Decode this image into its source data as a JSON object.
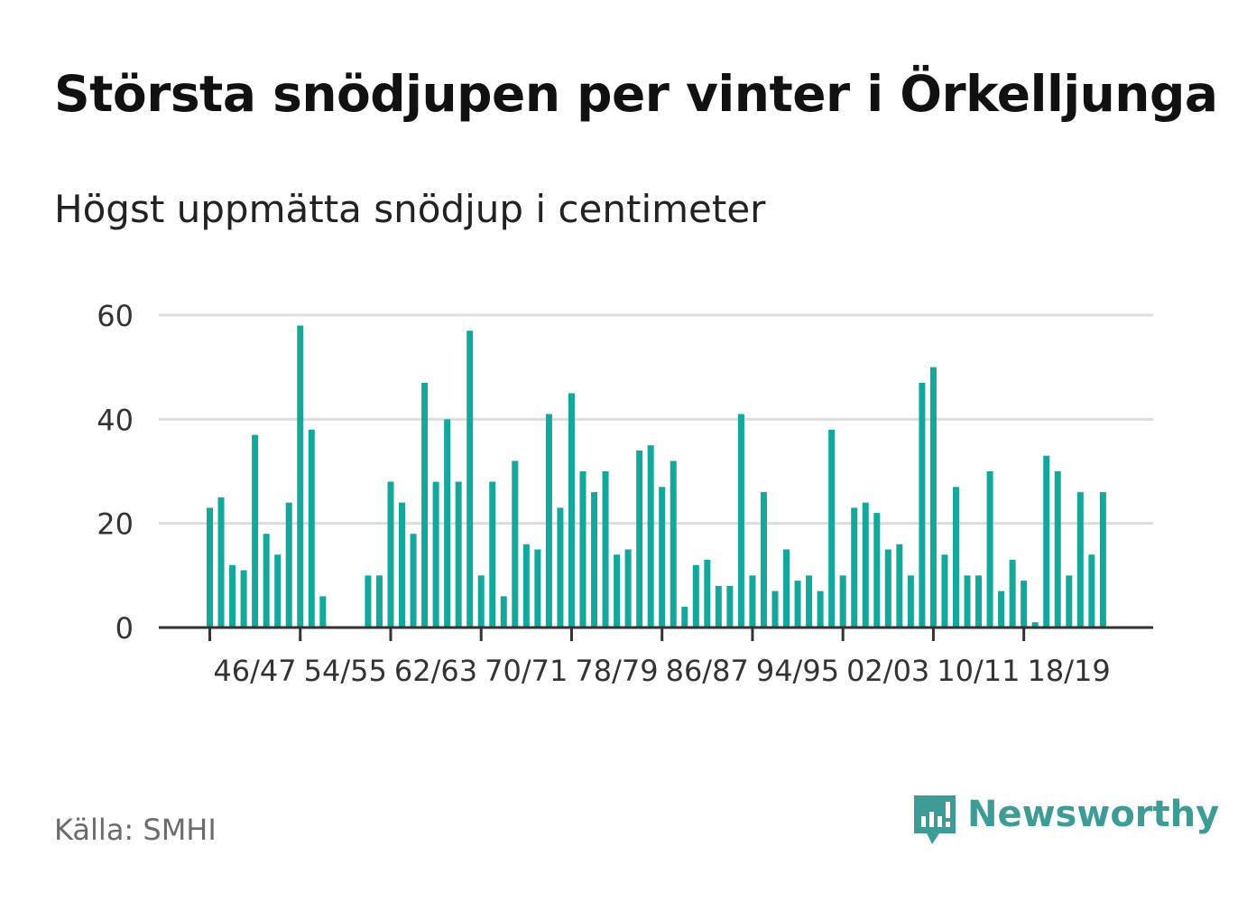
{
  "header": {
    "title": "Största snödjupen per vinter i Örkelljunga",
    "subtitle": "Högst uppmätta snödjup i centimeter"
  },
  "footer": {
    "source": "Källa: SMHI",
    "brand": "Newsworthy",
    "brand_icon": "newsworthy-bar-chart-bubble-icon"
  },
  "colors": {
    "bar": "#14a89d",
    "grid": "#dddddd",
    "axis": "#333333",
    "tick_text": "#333333",
    "brand": "#3d9c95"
  },
  "chart_data": {
    "type": "bar",
    "title": "Största snödjupen per vinter i Örkelljunga",
    "subtitle": "Högst uppmätta snödjup i centimeter",
    "xlabel": "",
    "ylabel": "",
    "ylim": [
      0,
      60
    ],
    "yticks": [
      0,
      20,
      40,
      60
    ],
    "grid": true,
    "legend": "none",
    "x_tick_labels": [
      "46/47",
      "54/55",
      "62/63",
      "70/71",
      "78/79",
      "86/87",
      "94/95",
      "02/03",
      "10/11",
      "18/19"
    ],
    "x_tick_categories": [
      "1946/47",
      "1954/55",
      "1962/63",
      "1970/71",
      "1978/79",
      "1986/87",
      "1994/95",
      "2002/03",
      "2010/11",
      "2018/19"
    ],
    "categories": [
      "1946/47",
      "1947/48",
      "1948/49",
      "1949/50",
      "1950/51",
      "1951/52",
      "1952/53",
      "1953/54",
      "1954/55",
      "1955/56",
      "1956/57",
      "1957/58",
      "1958/59",
      "1959/60",
      "1960/61",
      "1961/62",
      "1962/63",
      "1963/64",
      "1964/65",
      "1965/66",
      "1966/67",
      "1967/68",
      "1968/69",
      "1969/70",
      "1970/71",
      "1971/72",
      "1972/73",
      "1973/74",
      "1974/75",
      "1975/76",
      "1976/77",
      "1977/78",
      "1978/79",
      "1979/80",
      "1980/81",
      "1981/82",
      "1982/83",
      "1983/84",
      "1984/85",
      "1985/86",
      "1986/87",
      "1987/88",
      "1988/89",
      "1989/90",
      "1990/91",
      "1991/92",
      "1992/93",
      "1993/94",
      "1994/95",
      "1995/96",
      "1996/97",
      "1997/98",
      "1998/99",
      "1999/00",
      "2000/01",
      "2001/02",
      "2002/03",
      "2003/04",
      "2004/05",
      "2005/06",
      "2006/07",
      "2007/08",
      "2008/09",
      "2009/10",
      "2010/11",
      "2011/12",
      "2012/13",
      "2013/14",
      "2014/15",
      "2015/16",
      "2016/17",
      "2017/18",
      "2018/19",
      "2019/20",
      "2020/21",
      "2021/22",
      "2022/23",
      "2023/24",
      "2024/25",
      "2025/26"
    ],
    "values": [
      23,
      25,
      12,
      11,
      37,
      18,
      14,
      24,
      58,
      38,
      6,
      null,
      null,
      null,
      10,
      10,
      28,
      24,
      18,
      47,
      28,
      40,
      28,
      57,
      10,
      28,
      6,
      32,
      16,
      15,
      41,
      23,
      45,
      30,
      26,
      30,
      14,
      15,
      34,
      35,
      27,
      32,
      4,
      12,
      13,
      8,
      8,
      41,
      10,
      26,
      7,
      15,
      9,
      10,
      7,
      38,
      10,
      23,
      24,
      22,
      15,
      16,
      10,
      47,
      50,
      14,
      27,
      10,
      10,
      30,
      7,
      13,
      9,
      1,
      33,
      30,
      10,
      26,
      14,
      26
    ]
  }
}
